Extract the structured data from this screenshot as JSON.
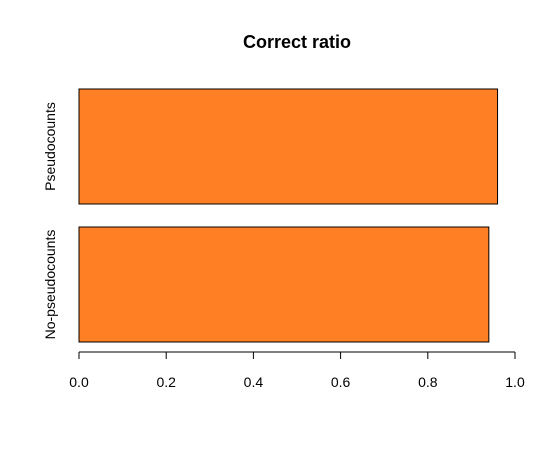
{
  "chart_data": {
    "type": "bar",
    "orientation": "horizontal",
    "title": "Correct ratio",
    "categories": [
      "Pseudocounts",
      "No-pseudocounts"
    ],
    "values": [
      0.96,
      0.94
    ],
    "xlabel": "",
    "ylabel": "",
    "xlim": [
      0,
      1
    ],
    "x_ticks": [
      "0.0",
      "0.2",
      "0.4",
      "0.6",
      "0.8",
      "1.0"
    ],
    "grid": false,
    "legend": "none",
    "colors": {
      "bar_fill": "#FF7F24",
      "bar_stroke": "#000000",
      "axis": "#000000",
      "background": "#FFFFFF"
    }
  }
}
